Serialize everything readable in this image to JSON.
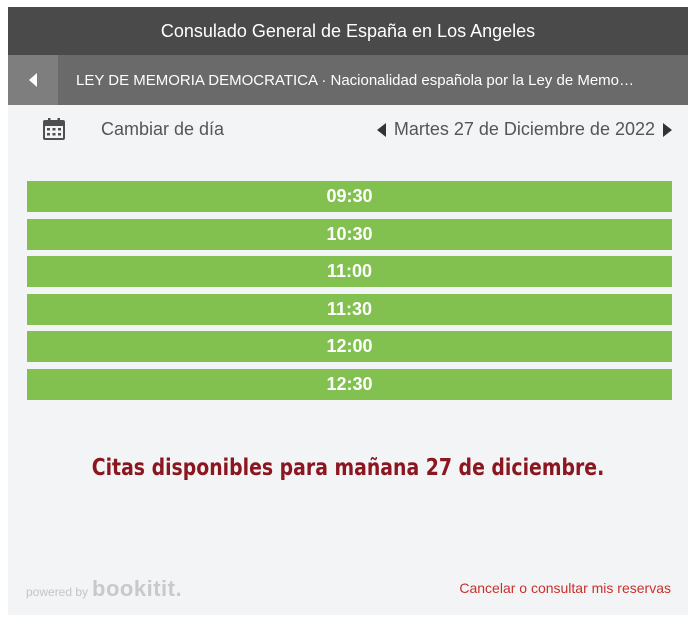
{
  "header": {
    "title": "Consulado General de España en Los Angeles"
  },
  "subheader": {
    "back_icon": "left-triangle-icon",
    "service_title": "LEY DE MEMORIA DEMOCRATICA · Nacionalidad española por la Ley de Memoria Democrática"
  },
  "daybar": {
    "calendar_icon": "calendar-icon",
    "change_day_label": "Cambiar de día",
    "current_date": "Martes 27 de Diciembre de 2022"
  },
  "slots": [
    "09:30",
    "10:30",
    "11:00",
    "11:30",
    "12:00",
    "12:30"
  ],
  "notice": "Citas disponibles para mañana 27 de diciembre.",
  "footer": {
    "powered_by": "powered by",
    "brand": "bookitit.",
    "cancel_link": "Cancelar o consultar mis reservas"
  },
  "colors": {
    "header_bg": "#4a4a4a",
    "subheader_bg": "#6a6a6a",
    "slot_bg": "#82c150",
    "notice_text": "#8b1620",
    "link_text": "#c9302c"
  }
}
